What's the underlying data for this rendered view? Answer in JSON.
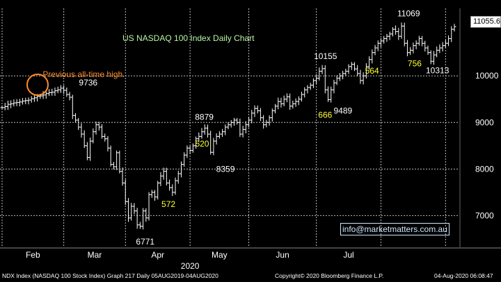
{
  "chart_data": {
    "type": "ohlc",
    "title": "US NASDAQ 100 Index Daily Chart",
    "y_ticks": [
      7000,
      8000,
      9000,
      10000
    ],
    "ylim": [
      6320,
      11450
    ],
    "x_month_labels": [
      "Feb",
      "Mar",
      "Apr",
      "May",
      "Jun",
      "Jul"
    ],
    "x_year_label": "2020",
    "last_price": "11055.6",
    "grid": true,
    "series": [
      {
        "name": "NDX Index",
        "values": [
          9320,
          9340,
          9390,
          9400,
          9420,
          9430,
          9440,
          9460,
          9470,
          9480,
          9510,
          9530,
          9560,
          9570,
          9590,
          9620,
          9640,
          9650,
          9680,
          9700,
          9736,
          9690,
          9600,
          9540,
          9150,
          9050,
          8900,
          8750,
          8500,
          8250,
          8600,
          8800,
          8950,
          8900,
          8700,
          8650,
          8450,
          8100,
          8050,
          8350,
          7950,
          7700,
          7300,
          6950,
          7200,
          7100,
          6800,
          6771,
          7100,
          6950,
          7450,
          7500,
          7400,
          7700,
          7850,
          7950,
          7700,
          7600,
          7500,
          7750,
          7900,
          8100,
          8300,
          8450,
          8400,
          8500,
          8650,
          8700,
          8800,
          8879,
          8750,
          8359,
          8600,
          8700,
          8750,
          8800,
          8900,
          8950,
          9000,
          9050,
          9000,
          8750,
          8850,
          8950,
          9050,
          9200,
          9300,
          9250,
          9100,
          8950,
          9000,
          9100,
          9250,
          9350,
          9450,
          9400,
          9500,
          9550,
          9350,
          9400,
          9450,
          9500,
          9600,
          9700,
          9750,
          9800,
          9900,
          9950,
          10100,
          10155,
          9700,
          9489,
          9700,
          9850,
          9950,
          10000,
          10050,
          10100,
          10200,
          10250,
          10150,
          10050,
          9900,
          10000,
          10200,
          10350,
          10500,
          10600,
          10700,
          10750,
          10800,
          10850,
          10900,
          11000,
          10950,
          10850,
          11069,
          10700,
          10500,
          10550,
          10650,
          10700,
          10800,
          10700,
          10600,
          10500,
          10313,
          10450,
          10550,
          10600,
          10650,
          10700,
          10800,
          11000,
          11055.6
        ]
      }
    ],
    "annotations": [
      {
        "text": "Previous all-time high.",
        "color": "#ff8c2a",
        "series_index": 20
      },
      {
        "text": "9736",
        "color": "#ffffff",
        "series_index": 20
      },
      {
        "text": "6771",
        "color": "#ffffff",
        "series_index": 47
      },
      {
        "text": "572",
        "color": "#ffff33",
        "series_index": 50
      },
      {
        "text": "8879",
        "color": "#ffffff",
        "series_index": 69
      },
      {
        "text": "520",
        "color": "#ffff33",
        "series_index": 70
      },
      {
        "text": "8359",
        "color": "#ffffff",
        "series_index": 71
      },
      {
        "text": "10155",
        "color": "#ffffff",
        "series_index": 109
      },
      {
        "text": "666",
        "color": "#ffff33",
        "series_index": 110
      },
      {
        "text": "9489",
        "color": "#ffffff",
        "series_index": 111
      },
      {
        "text": "564",
        "color": "#ffff33",
        "series_index": 125
      },
      {
        "text": "11069",
        "color": "#ffffff",
        "series_index": 136
      },
      {
        "text": "756",
        "color": "#ffff33",
        "series_index": 140
      },
      {
        "text": "10313",
        "color": "#ffffff",
        "series_index": 145
      }
    ],
    "colors": {
      "background": "#000000",
      "bars": "#ffffff",
      "grid": "#bfbfbf",
      "title": "#b9f5a6",
      "circle": "#ff8c2a"
    }
  },
  "watermark": "info@marketmatters.com.au",
  "footer": {
    "left": "NDX Index (NASDAQ 100 Stock Index) Graph 217  Daily 05AUG2019-04AUG2020",
    "center": "Copyright© 2020 Bloomberg Finance L.P.",
    "right": "04-Aug-2020 06:08:47"
  }
}
